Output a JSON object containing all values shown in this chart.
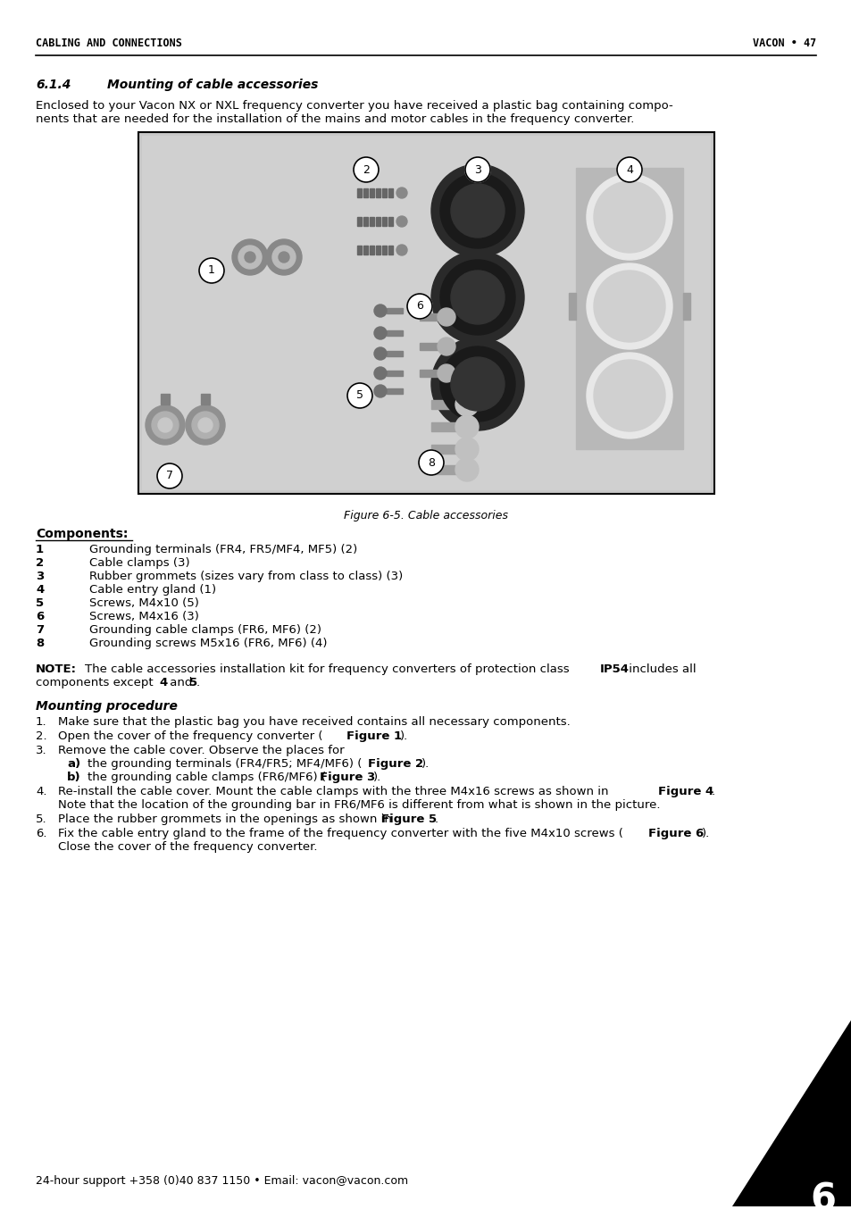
{
  "page_header_left": "CABLING AND CONNECTIONS",
  "page_header_right": "VACON • 47",
  "section_number": "6.1.4",
  "section_title": "Mounting of cable accessories",
  "intro_line1": "Enclosed to your Vacon NX or NXL frequency converter you have received a plastic bag containing compo-",
  "intro_line2": "nents that are needed for the installation of the mains and motor cables in the frequency converter.",
  "figure_caption": "Figure 6-5. Cable accessories",
  "components_header": "Components:",
  "components": [
    [
      "1",
      "Grounding terminals (FR4, FR5/MF4, MF5) (2)"
    ],
    [
      "2",
      "Cable clamps (3)"
    ],
    [
      "3",
      "Rubber grommets (sizes vary from class to class) (3)"
    ],
    [
      "4",
      "Cable entry gland (1)"
    ],
    [
      "5",
      "Screws, M4x10 (5)"
    ],
    [
      "6",
      "Screws, M4x16 (3)"
    ],
    [
      "7",
      "Grounding cable clamps (FR6, MF6) (2)"
    ],
    [
      "8",
      "Grounding screws M5x16 (FR6, MF6) (4)"
    ]
  ],
  "footer_left": "24-hour support +358 (0)40 837 1150 • Email: vacon@vacon.com",
  "footer_chapter": "6",
  "bg_color": "#ffffff"
}
